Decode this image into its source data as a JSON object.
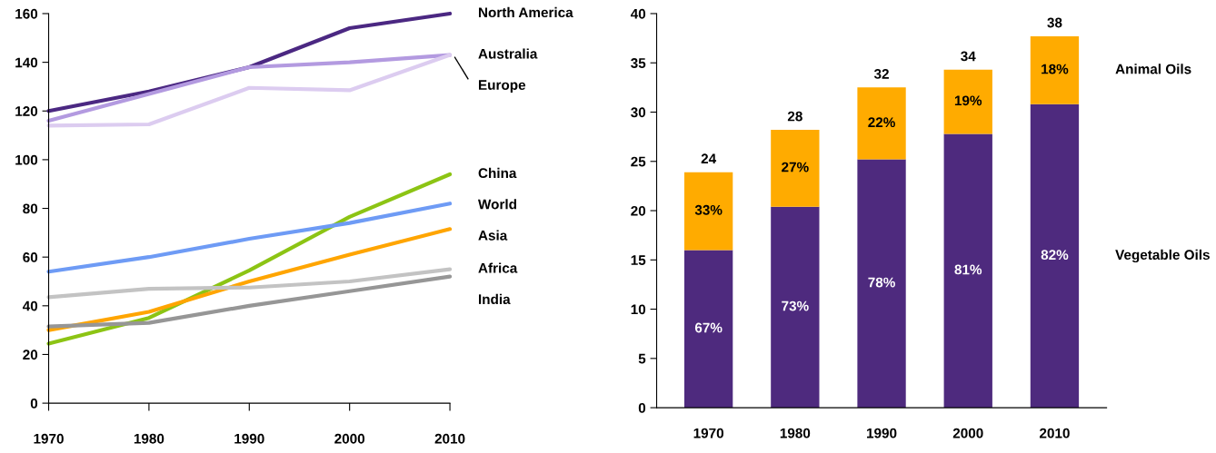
{
  "chart_data": [
    {
      "type": "line",
      "x": [
        1970,
        1980,
        1990,
        2000,
        2010
      ],
      "xlim": [
        1970,
        2010
      ],
      "xticks": [
        1970,
        1980,
        1990,
        2000,
        2010
      ],
      "ylim": [
        0,
        160
      ],
      "yticks": [
        0,
        20,
        40,
        60,
        80,
        100,
        120,
        140,
        160
      ],
      "grid": false,
      "legend": false,
      "series": [
        {
          "name": "North America",
          "color": "#4b2882",
          "values": [
            120,
            128,
            138,
            154,
            160
          ]
        },
        {
          "name": "Australia",
          "color": "#b39ae0",
          "values": [
            116,
            127,
            138,
            140,
            143
          ]
        },
        {
          "name": "Europe",
          "color": "#dcccf0",
          "values": [
            114,
            114.5,
            129.5,
            128.5,
            143
          ]
        },
        {
          "name": "China",
          "color": "#8cc414",
          "values": [
            24.5,
            35,
            54.5,
            76.5,
            94
          ]
        },
        {
          "name": "World",
          "color": "#6e9bf5",
          "values": [
            54,
            60,
            67.5,
            74,
            82
          ]
        },
        {
          "name": "Asia",
          "color": "#ffa500",
          "values": [
            30,
            37.5,
            50,
            61,
            71.5
          ]
        },
        {
          "name": "Africa",
          "color": "#c3c3c3",
          "values": [
            43.5,
            47,
            47.5,
            50,
            55
          ]
        },
        {
          "name": "India",
          "color": "#969696",
          "values": [
            31.5,
            33,
            40,
            46,
            52
          ]
        }
      ]
    },
    {
      "type": "bar",
      "stacked": true,
      "categories": [
        "1970",
        "1980",
        "1990",
        "2000",
        "2010"
      ],
      "ylim": [
        0,
        40
      ],
      "yticks": [
        0,
        5,
        10,
        15,
        20,
        25,
        30,
        35,
        40
      ],
      "grid": false,
      "legend": false,
      "series": [
        {
          "name": "Vegetable Oils",
          "color": "#4e2a7e",
          "values": [
            16,
            20.4,
            25.2,
            27.8,
            30.8
          ]
        },
        {
          "name": "Animal Oils",
          "color": "#ffab00",
          "values": [
            7.9,
            7.8,
            7.3,
            6.5,
            6.9
          ]
        }
      ],
      "annotations": [
        "67%",
        "73%",
        "78%",
        "81%",
        "82%",
        "33%",
        "27%",
        "22%",
        "19%",
        "18%"
      ],
      "totals": [
        "24",
        "28",
        "32",
        "34",
        "38"
      ]
    }
  ]
}
